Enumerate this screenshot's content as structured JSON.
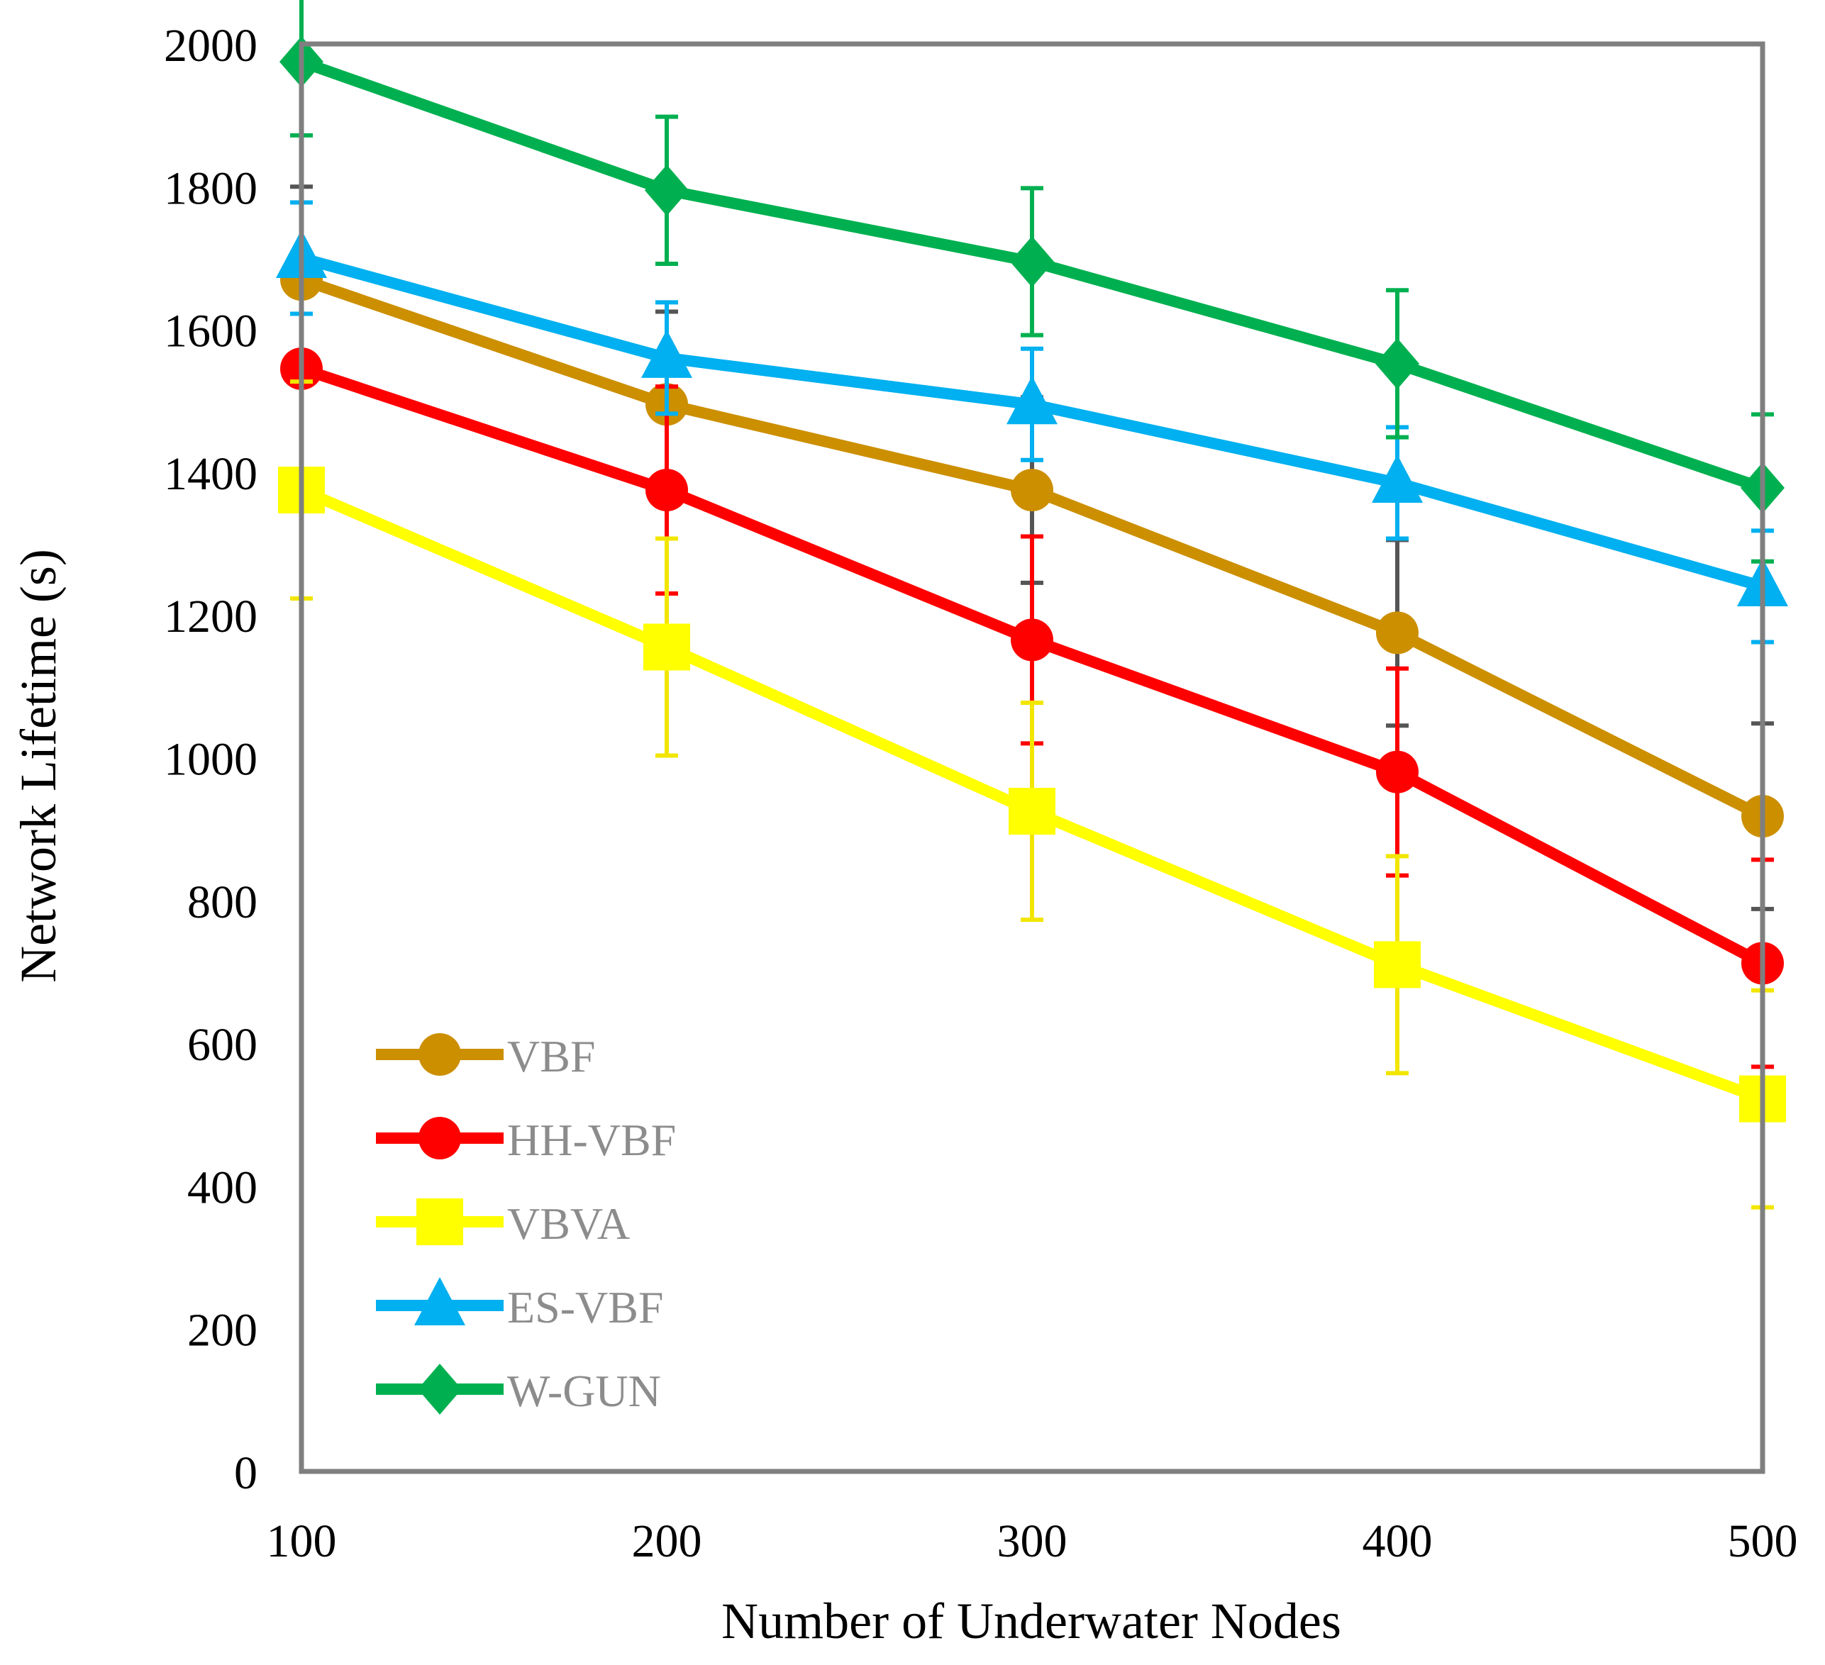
{
  "chart_data": {
    "type": "line",
    "title": "",
    "xlabel": "Number of Underwater Nodes",
    "ylabel": "Network Lifetime (s)",
    "x": [
      100,
      200,
      300,
      400,
      500
    ],
    "xlim": [
      100,
      500
    ],
    "ylim": [
      0,
      2000
    ],
    "x_ticks": [
      "100",
      "200",
      "300",
      "400",
      "500"
    ],
    "y_ticks": [
      "0",
      "200",
      "400",
      "600",
      "800",
      "1000",
      "1200",
      "1400",
      "1600",
      "1800",
      "2000"
    ],
    "grid": false,
    "legend_position": "bottom-left",
    "series": [
      {
        "name": "VBF",
        "color": "#cc8f00",
        "marker": "circle",
        "values": [
          1670,
          1495,
          1375,
          1175,
          918
        ],
        "error": [
          130,
          130,
          130,
          130,
          130
        ],
        "error_color": "#555555"
      },
      {
        "name": "HH-VBF",
        "color": "#ff0000",
        "marker": "circle",
        "values": [
          1545,
          1375,
          1165,
          980,
          712
        ],
        "error": [
          145,
          145,
          145,
          145,
          145
        ],
        "error_color": "#ff0000"
      },
      {
        "name": "VBVA",
        "color": "#ffff00",
        "marker": "square",
        "values": [
          1375,
          1155,
          925,
          710,
          522
        ],
        "error": [
          152,
          152,
          152,
          152,
          152
        ],
        "error_color": "#f2e600"
      },
      {
        "name": "ES-VBF",
        "color": "#00b0f0",
        "marker": "triangle",
        "values": [
          1700,
          1560,
          1495,
          1385,
          1240
        ],
        "error": [
          78,
          78,
          78,
          78,
          78
        ],
        "error_color": "#00b0f0"
      },
      {
        "name": "W-GUN",
        "color": "#00b050",
        "marker": "diamond",
        "values": [
          1975,
          1795,
          1695,
          1552,
          1378
        ],
        "error": [
          103,
          103,
          103,
          103,
          103
        ],
        "error_color": "#00b050"
      }
    ]
  }
}
